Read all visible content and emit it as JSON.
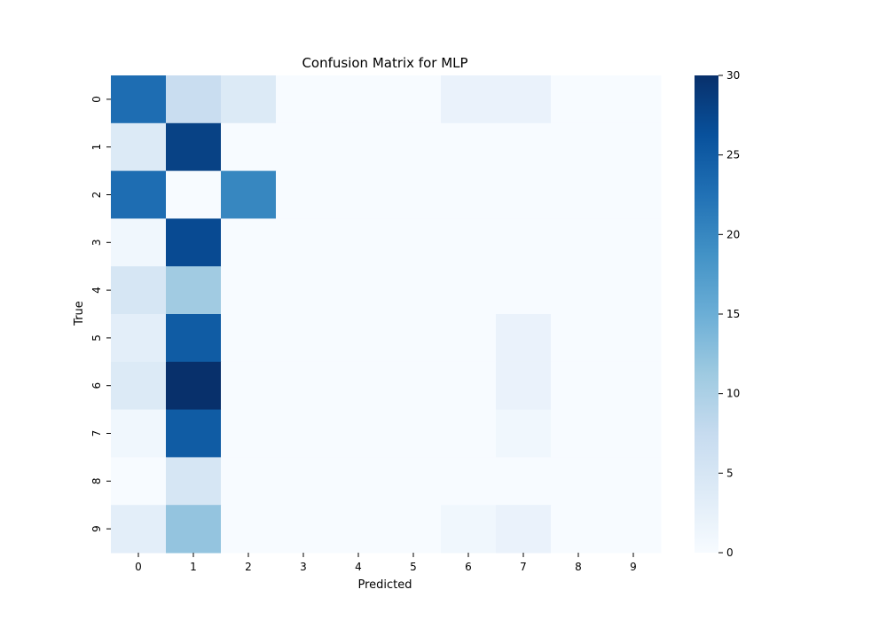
{
  "chart_data": {
    "type": "heatmap",
    "title": "Confusion Matrix for MLP",
    "xlabel": "Predicted",
    "ylabel": "True",
    "x_categories": [
      "0",
      "1",
      "2",
      "3",
      "4",
      "5",
      "6",
      "7",
      "8",
      "9"
    ],
    "y_categories": [
      "0",
      "1",
      "2",
      "3",
      "4",
      "5",
      "6",
      "7",
      "8",
      "9"
    ],
    "values": [
      [
        23,
        7,
        4,
        0,
        0,
        0,
        2,
        2,
        0,
        0
      ],
      [
        4,
        28,
        0,
        0,
        0,
        0,
        0,
        0,
        0,
        0
      ],
      [
        23,
        0,
        20,
        0,
        0,
        0,
        0,
        0,
        0,
        0
      ],
      [
        1,
        27,
        0,
        0,
        0,
        0,
        0,
        0,
        0,
        0
      ],
      [
        5,
        11,
        0,
        0,
        0,
        0,
        0,
        0,
        0,
        0
      ],
      [
        3,
        25,
        0,
        0,
        0,
        0,
        0,
        2,
        0,
        0
      ],
      [
        4,
        30,
        0,
        0,
        0,
        0,
        0,
        2,
        0,
        0
      ],
      [
        1,
        25,
        0,
        0,
        0,
        0,
        0,
        1,
        0,
        0
      ],
      [
        0,
        5,
        0,
        0,
        0,
        0,
        0,
        0,
        0,
        0
      ],
      [
        3,
        12,
        0,
        0,
        0,
        0,
        1,
        2,
        0,
        0
      ]
    ],
    "colorbar": {
      "min": 0,
      "max": 30,
      "ticks": [
        "0",
        "5",
        "10",
        "15",
        "20",
        "25",
        "30"
      ],
      "colormap": "Blues"
    },
    "grid": false
  }
}
